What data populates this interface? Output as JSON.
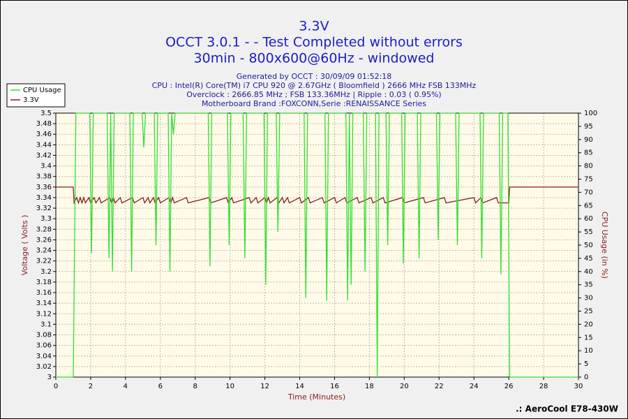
{
  "chart_data": {
    "type": "line",
    "title": "3.3V",
    "subtitle": [
      "OCCT 3.0.1 -  - Test Completed without errors",
      "30min - 800x600@60Hz - windowed"
    ],
    "info": [
      "Generated by OCCT : 30/09/09 01:52:18",
      "CPU : Intel(R) Core(TM) i7 CPU 920 @ 2.67GHz ( Bloomfield ) 2666 MHz FSB 133MHz",
      "Overclock : 2666.85 MHz ; FSB 133.36MHz | Ripple : 0.03 ( 0.95%)",
      "Motherboard Brand :FOXCONN,Serie :RENAISSANCE Series"
    ],
    "xlabel": "Time (Minutes)",
    "ylabel": "Voltage ( Volts )",
    "y2label": "CPU Usage (in %)",
    "footer": ".: AeroCool E78-430W",
    "legend": "top-left",
    "grid": true,
    "xlim": [
      0,
      30
    ],
    "xticks": [
      0,
      2,
      4,
      6,
      8,
      10,
      12,
      14,
      16,
      18,
      20,
      22,
      24,
      26,
      28,
      30
    ],
    "ylim": [
      3,
      3.5
    ],
    "yticks": [
      3,
      3.02,
      3.04,
      3.06,
      3.08,
      3.1,
      3.12,
      3.14,
      3.16,
      3.18,
      3.2,
      3.22,
      3.24,
      3.26,
      3.28,
      3.3,
      3.32,
      3.34,
      3.36,
      3.38,
      3.4,
      3.42,
      3.44,
      3.46,
      3.48,
      3.5
    ],
    "y2lim": [
      0,
      100
    ],
    "y2ticks": [
      0,
      5,
      10,
      15,
      20,
      25,
      30,
      35,
      40,
      45,
      50,
      55,
      60,
      65,
      70,
      75,
      80,
      85,
      90,
      95,
      100
    ],
    "series": [
      {
        "name": "CPU Usage",
        "color": "#33dd33",
        "axis": "y2",
        "x": [
          0,
          1.0,
          1.15,
          1.95,
          2.05,
          2.15,
          2.95,
          3.05,
          3.15,
          3.25,
          3.35,
          4.25,
          4.35,
          4.45,
          4.95,
          5.05,
          5.15,
          5.65,
          5.75,
          5.85,
          6.45,
          6.55,
          6.65,
          6.75,
          6.85,
          8.75,
          8.85,
          8.95,
          9.85,
          9.95,
          10.05,
          10.75,
          10.85,
          10.95,
          11.95,
          12.05,
          12.15,
          12.65,
          12.75,
          12.85,
          14.25,
          14.35,
          14.45,
          15.45,
          15.55,
          15.65,
          16.65,
          16.75,
          16.85,
          16.95,
          17.05,
          17.65,
          17.75,
          17.85,
          18.35,
          18.45,
          18.55,
          18.95,
          19.05,
          19.15,
          19.85,
          19.95,
          20.05,
          20.75,
          20.85,
          20.95,
          21.85,
          21.95,
          22.05,
          22.95,
          23.05,
          23.15,
          24.35,
          24.45,
          24.55,
          25.45,
          25.55,
          25.65,
          25.95,
          26.05,
          30
        ],
        "values": [
          0,
          0,
          100,
          100,
          47,
          100,
          100,
          45,
          100,
          40,
          100,
          100,
          40,
          100,
          100,
          87,
          100,
          100,
          50,
          100,
          100,
          40,
          100,
          92,
          100,
          100,
          42,
          100,
          100,
          50,
          100,
          100,
          45,
          100,
          100,
          35,
          100,
          100,
          55,
          100,
          100,
          30,
          100,
          100,
          29,
          100,
          100,
          29,
          100,
          35,
          100,
          100,
          40,
          100,
          100,
          0,
          100,
          100,
          50,
          100,
          100,
          43,
          100,
          100,
          45,
          100,
          100,
          52,
          100,
          100,
          50,
          100,
          100,
          45,
          100,
          100,
          39,
          100,
          100,
          0,
          0
        ]
      },
      {
        "name": "3.3V",
        "color": "#8b1a1a",
        "x": [
          0,
          1.0,
          1.05,
          1.2,
          1.3,
          1.4,
          1.5,
          1.6,
          1.7,
          1.9,
          2.0,
          2.2,
          2.3,
          2.5,
          2.6,
          3.1,
          3.2,
          3.3,
          3.4,
          3.7,
          3.8,
          4.4,
          4.5,
          5.0,
          5.1,
          5.3,
          5.4,
          5.6,
          5.7,
          5.9,
          6.0,
          6.5,
          6.6,
          6.7,
          6.8,
          7.5,
          7.6,
          8.8,
          8.9,
          9.8,
          9.9,
          10.1,
          10.2,
          11.1,
          11.2,
          11.5,
          11.6,
          12.0,
          12.1,
          12.2,
          12.3,
          12.7,
          12.8,
          13.0,
          13.1,
          13.3,
          13.4,
          14.0,
          14.1,
          14.5,
          14.6,
          15.3,
          15.4,
          16.0,
          16.1,
          16.6,
          16.7,
          17.3,
          17.4,
          18.1,
          18.2,
          18.8,
          18.9,
          19.9,
          20.0,
          21.1,
          21.2,
          22.3,
          22.4,
          24.0,
          24.1,
          24.4,
          24.5,
          25.3,
          25.4,
          26.0,
          26.05,
          30
        ],
        "values": [
          3.36,
          3.36,
          3.33,
          3.34,
          3.33,
          3.34,
          3.33,
          3.34,
          3.33,
          3.34,
          3.33,
          3.34,
          3.33,
          3.34,
          3.33,
          3.34,
          3.33,
          3.34,
          3.33,
          3.34,
          3.33,
          3.34,
          3.33,
          3.34,
          3.33,
          3.34,
          3.33,
          3.34,
          3.33,
          3.34,
          3.33,
          3.34,
          3.33,
          3.34,
          3.33,
          3.34,
          3.33,
          3.34,
          3.33,
          3.34,
          3.33,
          3.34,
          3.33,
          3.34,
          3.33,
          3.34,
          3.33,
          3.34,
          3.33,
          3.34,
          3.33,
          3.34,
          3.33,
          3.34,
          3.33,
          3.34,
          3.33,
          3.34,
          3.33,
          3.34,
          3.33,
          3.34,
          3.33,
          3.34,
          3.33,
          3.34,
          3.33,
          3.34,
          3.33,
          3.34,
          3.33,
          3.34,
          3.33,
          3.34,
          3.33,
          3.34,
          3.33,
          3.34,
          3.33,
          3.34,
          3.33,
          3.34,
          3.33,
          3.34,
          3.33,
          3.33,
          3.36,
          3.36
        ]
      }
    ]
  }
}
